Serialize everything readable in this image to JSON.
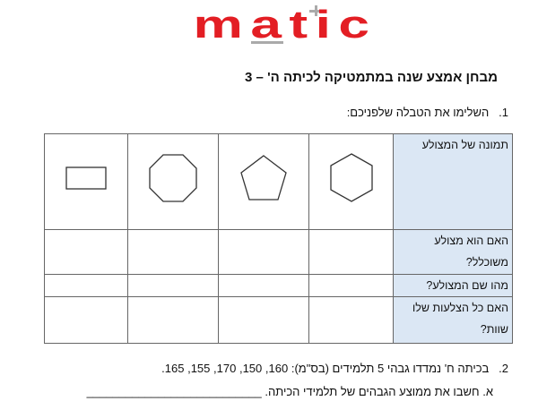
{
  "logo": {
    "text": "matic",
    "color": "#e31e24",
    "accent": "#aaaaaa"
  },
  "title": "מבחן אמצע שנה במתמטיקה לכיתה ה' – 3",
  "q1": {
    "number": "1.",
    "text": "השלימו את הטבלה שלפניכם:"
  },
  "table": {
    "header_bg": "#dbe7f4",
    "rows": [
      "תמונה של המצולע",
      "האם הוא מצולע משוכלל?",
      "מהו שם המצולע?",
      "האם כל הצלעות שלו שוות?"
    ],
    "shapes": [
      "hexagon",
      "pentagon",
      "octagon",
      "rectangle"
    ]
  },
  "q2": {
    "number": "2.",
    "text": "בכיתה ח' נמדדו גבהי 5 תלמידים (בס\"מ): 160, 150, 170, 155, 165.",
    "a": "א. חשבו את ממוצע הגבהים של תלמידי הכיתה. ___________________________"
  }
}
